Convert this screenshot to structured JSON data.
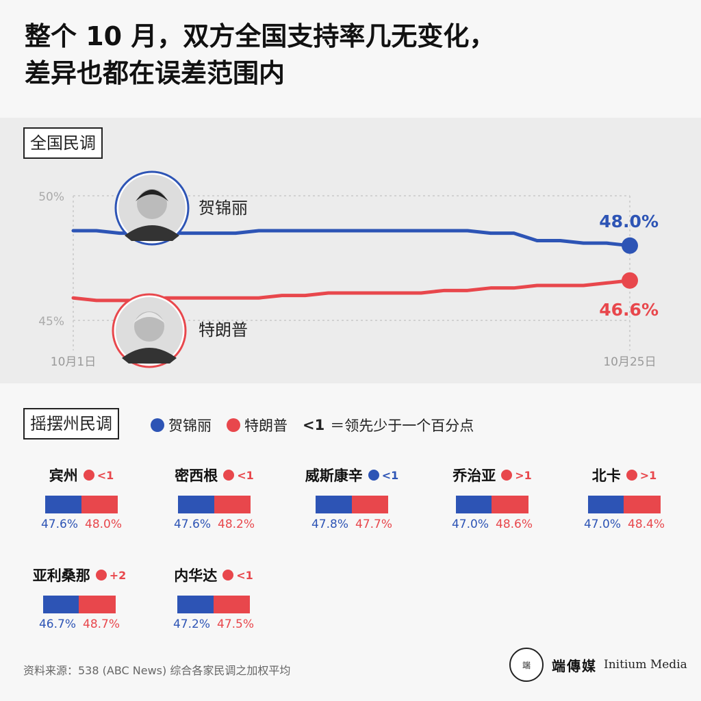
{
  "title": {
    "line1": "整个 10 月，双方全国支持率几无变化，",
    "line2": "差异也都在误差范围内"
  },
  "national": {
    "label": "全国民调",
    "candidate_blue": "贺锦丽",
    "candidate_red": "特朗普",
    "end_blue": "48.0%",
    "end_red": "46.6%",
    "y_ticks": [
      "50%",
      "45%"
    ],
    "x_start": "10月1日",
    "x_end": "10月25日"
  },
  "chart_data": {
    "type": "line",
    "x_ticks": [
      "10月1日",
      "10月25日"
    ],
    "y_ticks": [
      "50%",
      "45%"
    ],
    "ylim": [
      44.5,
      50.5
    ],
    "grid": true,
    "series": [
      {
        "name": "贺锦丽",
        "color": "#2d54b5",
        "values": [
          48.6,
          48.6,
          48.5,
          48.5,
          48.5,
          48.5,
          48.5,
          48.5,
          48.6,
          48.6,
          48.6,
          48.6,
          48.6,
          48.6,
          48.6,
          48.6,
          48.6,
          48.6,
          48.5,
          48.5,
          48.2,
          48.2,
          48.1,
          48.1,
          48.0
        ]
      },
      {
        "name": "特朗普",
        "color": "#e8474c",
        "values": [
          45.9,
          45.8,
          45.8,
          45.8,
          45.9,
          45.9,
          45.9,
          45.9,
          45.9,
          46.0,
          46.0,
          46.1,
          46.1,
          46.1,
          46.1,
          46.1,
          46.2,
          46.2,
          46.3,
          46.3,
          46.4,
          46.4,
          46.4,
          46.5,
          46.6
        ]
      }
    ]
  },
  "swing": {
    "label": "摇摆州民调",
    "legend_blue": "贺锦丽",
    "legend_red": "特朗普",
    "legend_note_lead": "<1",
    "legend_note": "＝领先少于一个百分点",
    "blue_color": "#2d54b5",
    "red_color": "#e8474c",
    "states": [
      {
        "name": "宾州",
        "lead": "<1",
        "leader": "red",
        "blue": "47.6%",
        "red": "48.0%",
        "blue_v": 47.6,
        "red_v": 48.0
      },
      {
        "name": "密西根",
        "lead": "<1",
        "leader": "red",
        "blue": "47.6%",
        "red": "48.2%",
        "blue_v": 47.6,
        "red_v": 48.2
      },
      {
        "name": "威斯康辛",
        "lead": "<1",
        "leader": "blue",
        "blue": "47.8%",
        "red": "47.7%",
        "blue_v": 47.8,
        "red_v": 47.7
      },
      {
        "name": "乔治亚",
        "lead": ">1",
        "leader": "red",
        "blue": "47.0%",
        "red": "48.6%",
        "blue_v": 47.0,
        "red_v": 48.6
      },
      {
        "name": "北卡",
        "lead": ">1",
        "leader": "red",
        "blue": "47.0%",
        "red": "48.4%",
        "blue_v": 47.0,
        "red_v": 48.4
      },
      {
        "name": "亚利桑那",
        "lead": "+2",
        "leader": "red",
        "blue": "46.7%",
        "red": "48.7%",
        "blue_v": 46.7,
        "red_v": 48.7
      },
      {
        "name": "内华达",
        "lead": "<1",
        "leader": "red",
        "blue": "47.2%",
        "red": "47.5%",
        "blue_v": 47.2,
        "red_v": 47.5
      }
    ]
  },
  "footer": {
    "source": "资料来源：538 (ABC News) 综合各家民调之加权平均",
    "logo_mark": "端",
    "logo_zh": "端傳媒",
    "logo_en": "Initium Media"
  }
}
